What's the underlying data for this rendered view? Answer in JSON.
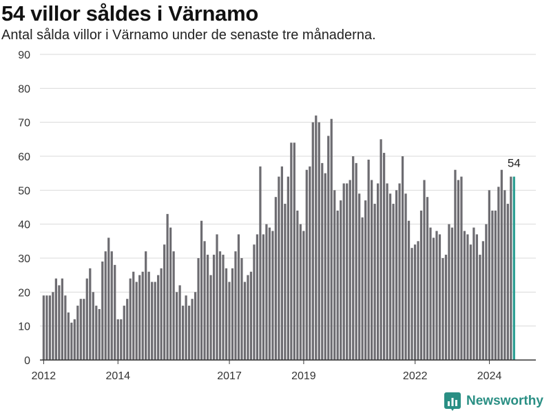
{
  "header": {
    "title": "54 villor såldes i Värnamo",
    "subtitle": "Antal sålda villor i Värnamo under de senaste tre månaderna."
  },
  "brand": {
    "name": "Newsworthy",
    "icon": "newsworthy-logo-icon",
    "color": "#2a8f84"
  },
  "chart_data": {
    "type": "bar",
    "title": "54 villor såldes i Värnamo",
    "subtitle": "Antal sålda villor i Värnamo under de senaste tre månaderna.",
    "xlabel": "",
    "ylabel": "",
    "ylim": [
      0,
      90
    ],
    "y_ticks": [
      0,
      10,
      20,
      30,
      40,
      50,
      60,
      70,
      80,
      90
    ],
    "x_ticks": [
      {
        "label": "2012",
        "value": 2012.0
      },
      {
        "label": "2014",
        "value": 2014.0
      },
      {
        "label": "2017",
        "value": 2017.0
      },
      {
        "label": "2019",
        "value": 2019.0
      },
      {
        "label": "2022",
        "value": 2022.0
      },
      {
        "label": "2024",
        "value": 2024.0
      }
    ],
    "grid": true,
    "bar_color": "#6d6c71",
    "highlight_color": "#2a9d91",
    "highlight_label": "54",
    "series": [
      {
        "segments": [
          {
            "start": 2012.0,
            "step": 0.0833,
            "values": [
              19,
              19,
              19,
              20,
              24,
              22,
              24,
              19,
              14,
              11,
              12,
              16,
              18,
              18,
              24,
              27,
              20,
              16,
              15,
              29,
              32,
              36,
              32,
              28
            ]
          },
          {
            "start": 2014.0,
            "step": 0.0833,
            "values": [
              12,
              12,
              16,
              18,
              24,
              26,
              23,
              25,
              26,
              32,
              26,
              23,
              23,
              25,
              27,
              34,
              43,
              39,
              32,
              20,
              22,
              16,
              19,
              16,
              18,
              20,
              30,
              41,
              35,
              31,
              25,
              31,
              37,
              32,
              31,
              27,
              23,
              27,
              32,
              37,
              30,
              23,
              25,
              26,
              34,
              37,
              57,
              37,
              40,
              39,
              38,
              48,
              54,
              57,
              46,
              54,
              64,
              64,
              44,
              40,
              38,
              56,
              57,
              70,
              72,
              70,
              58,
              55,
              66,
              71,
              50,
              44,
              47,
              52,
              52,
              53,
              60,
              58,
              49,
              42,
              47,
              59,
              53,
              46,
              52,
              65,
              61,
              52,
              49,
              46,
              50,
              52,
              60,
              49,
              41,
              33,
              34,
              35,
              44,
              53,
              48,
              39,
              36,
              38,
              37,
              30,
              31,
              40,
              39,
              56,
              53,
              54,
              38,
              37,
              34,
              39,
              37,
              31,
              35,
              40,
              50,
              44,
              44,
              51,
              56,
              50,
              46,
              54,
              54
            ]
          }
        ]
      }
    ]
  }
}
